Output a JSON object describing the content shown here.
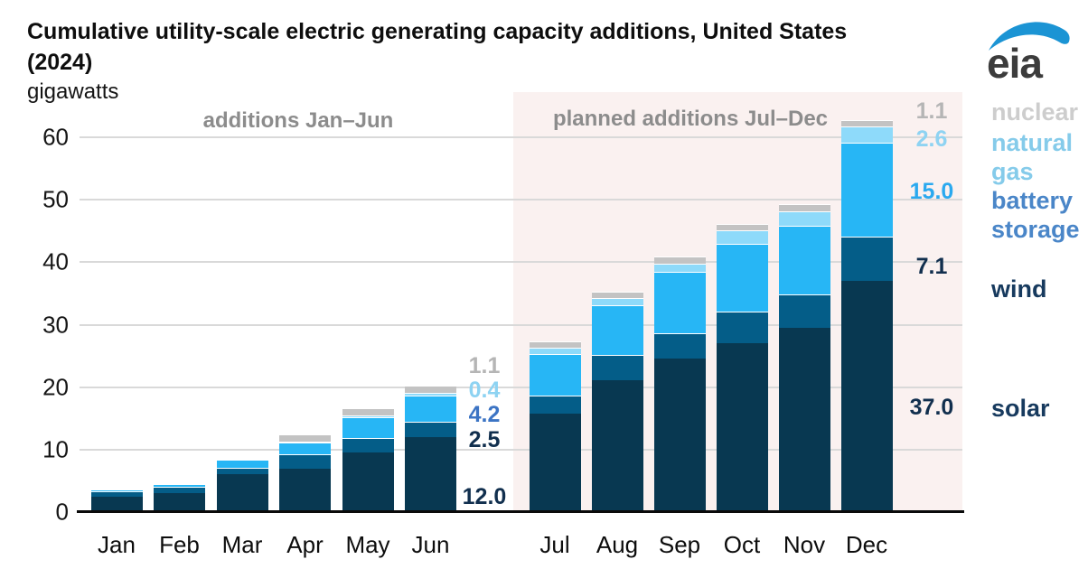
{
  "header": {
    "title_line1": "Cumulative utility-scale electric generating capacity additions, United States",
    "title_line2": "(2024)",
    "units_label": "gigawatts",
    "logo_text": "eia"
  },
  "sections": {
    "left_label": "additions Jan–Jun",
    "right_label": "planned additions Jul–Dec"
  },
  "chart_data": {
    "type": "bar",
    "stacked": true,
    "title": "Cumulative utility-scale electric generating capacity additions, United States (2024)",
    "ylabel": "gigawatts",
    "ylim": [
      0,
      60
    ],
    "yticks": [
      0,
      10,
      20,
      30,
      40,
      50,
      60
    ],
    "grid": true,
    "legend_position": "right",
    "categories": [
      "Jan",
      "Feb",
      "Mar",
      "Apr",
      "May",
      "Jun",
      "Jul",
      "Aug",
      "Sep",
      "Oct",
      "Nov",
      "Dec"
    ],
    "series": [
      {
        "name": "solar",
        "color": "#083851",
        "values": [
          2.4,
          3.1,
          6.1,
          7.0,
          9.5,
          12.0,
          15.8,
          21.1,
          24.6,
          27.1,
          29.5,
          37.0
        ]
      },
      {
        "name": "wind",
        "color": "#045d88",
        "values": [
          0.9,
          0.9,
          1.0,
          2.3,
          2.4,
          2.5,
          2.9,
          4.0,
          4.1,
          5.0,
          5.3,
          7.1
        ]
      },
      {
        "name": "battery storage",
        "color": "#27b6f5",
        "values": [
          0.3,
          0.5,
          1.3,
          1.8,
          3.3,
          4.2,
          6.6,
          8.0,
          9.8,
          10.8,
          11.0,
          15.0
        ]
      },
      {
        "name": "natural gas",
        "color": "#8edafa",
        "values": [
          0.1,
          0.1,
          0.1,
          0.2,
          0.3,
          0.4,
          1.0,
          1.1,
          1.3,
          2.2,
          2.4,
          2.6
        ]
      },
      {
        "name": "nuclear",
        "color": "#c3c3c3",
        "values": [
          0.0,
          0.0,
          0.0,
          1.1,
          1.1,
          1.1,
          1.1,
          1.1,
          1.1,
          1.1,
          1.1,
          1.1
        ]
      }
    ]
  },
  "annotations": {
    "jun": {
      "nuclear": "1.1",
      "natural_gas": "0.4",
      "battery_storage": "4.2",
      "wind": "2.5",
      "solar": "12.0"
    },
    "dec": {
      "nuclear": "1.1",
      "natural_gas": "2.6",
      "battery_storage": "15.0",
      "wind": "7.1",
      "solar": "37.0"
    }
  },
  "legend": {
    "nuclear": "nuclear",
    "natural_gas": "natural gas",
    "battery_storage": "battery storage",
    "wind": "wind",
    "solar": "solar"
  },
  "colors": {
    "solar": "#083851",
    "wind": "#045d88",
    "battery": "#27b6f5",
    "natural_gas": "#8edafa",
    "nuclear": "#c3c3c3",
    "annotation_nuclear": "#b5b5b5",
    "annotation_gas": "#8ed3f2",
    "annotation_battery_mid": "#3c74c4",
    "annotation_battery_bright": "#2aa9ef",
    "annotation_dark": "#112f4e",
    "legend_nuclear": "#cdcdcd",
    "legend_gas": "#85cbea",
    "legend_battery": "#4a86c8",
    "legend_dark": "#173a5e",
    "section_label": "#8c8c8c",
    "planned_bg": "#faf1f0",
    "logo_blue": "#1b94d4",
    "logo_text": "#3c3c3c"
  }
}
